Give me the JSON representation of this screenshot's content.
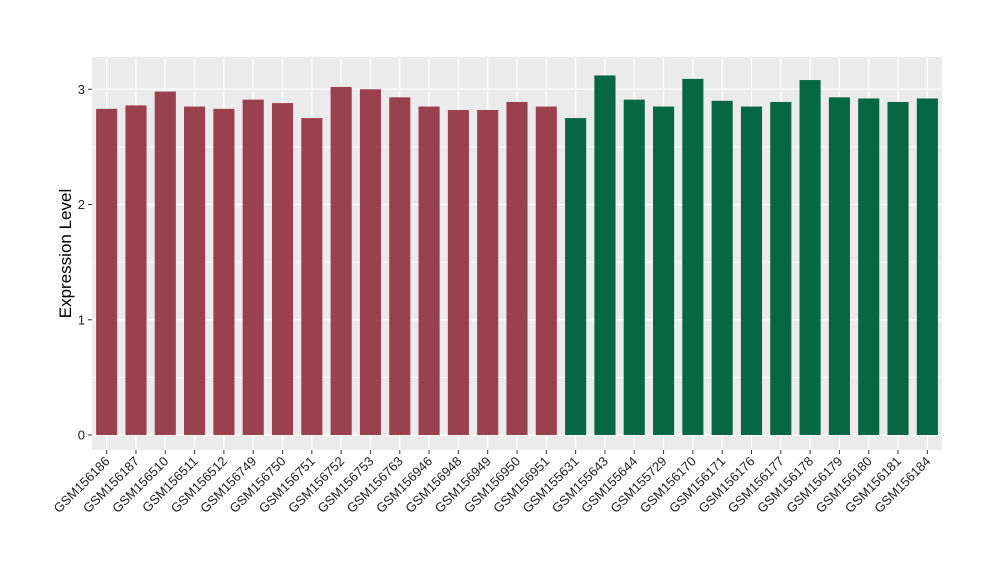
{
  "chart_data": {
    "type": "bar",
    "ylabel": "Expression Level",
    "xlabel": "",
    "ylim": [
      -0.13,
      3.28
    ],
    "y_ticks": [
      0,
      1,
      2,
      3
    ],
    "grid": true,
    "categories": [
      "GSM156186",
      "GSM156187",
      "GSM156510",
      "GSM156511",
      "GSM156512",
      "GSM156749",
      "GSM156750",
      "GSM156751",
      "GSM156752",
      "GSM156753",
      "GSM156763",
      "GSM156946",
      "GSM156948",
      "GSM156949",
      "GSM156950",
      "GSM156951",
      "GSM155631",
      "GSM155643",
      "GSM155644",
      "GSM155729",
      "GSM156170",
      "GSM156171",
      "GSM156176",
      "GSM156177",
      "GSM156178",
      "GSM156179",
      "GSM156180",
      "GSM156181",
      "GSM156184"
    ],
    "values": [
      2.83,
      2.86,
      2.98,
      2.85,
      2.83,
      2.91,
      2.88,
      2.75,
      3.02,
      3.0,
      2.93,
      2.85,
      2.82,
      2.82,
      2.89,
      2.85,
      2.75,
      3.12,
      2.91,
      2.85,
      3.09,
      2.9,
      2.85,
      2.89,
      3.08,
      2.93,
      2.92,
      2.89,
      2.92
    ],
    "group_colors": [
      "#9A4150",
      "#9A4150",
      "#9A4150",
      "#9A4150",
      "#9A4150",
      "#9A4150",
      "#9A4150",
      "#9A4150",
      "#9A4150",
      "#9A4150",
      "#9A4150",
      "#9A4150",
      "#9A4150",
      "#9A4150",
      "#9A4150",
      "#9A4150",
      "#056744",
      "#056744",
      "#056744",
      "#056744",
      "#056744",
      "#056744",
      "#056744",
      "#056744",
      "#056744",
      "#056744",
      "#056744",
      "#056744",
      "#056744"
    ],
    "panel_background": "#EBEBEB",
    "grid_color": "#FFFFFF"
  }
}
